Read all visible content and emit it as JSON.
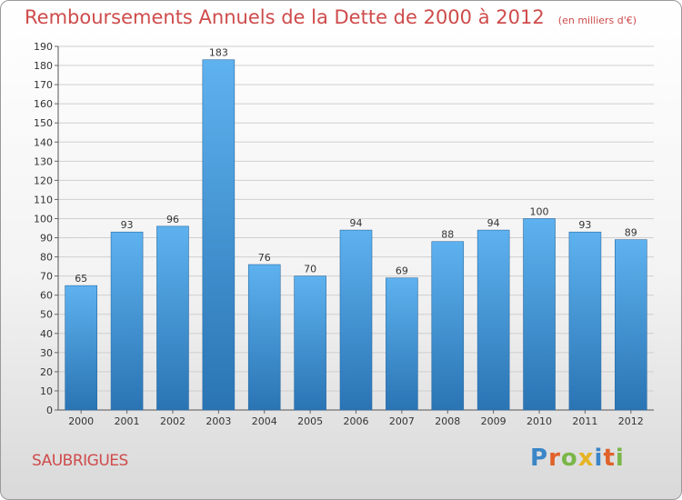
{
  "title": "Remboursements Annuels de la Dette de 2000 à 2012",
  "unit": "(en milliers d'€)",
  "place": "SAUBRIGUES",
  "logo": {
    "text": "Proxiti",
    "letters": [
      "P",
      "r",
      "o",
      "x",
      "i",
      "t",
      "i"
    ],
    "colors": [
      "#3a86c8",
      "#e0612a",
      "#7ab648",
      "#e6b422",
      "#3a86c8",
      "#e0612a",
      "#7ab648"
    ]
  },
  "colors": {
    "bar": "#4a9fe0",
    "bar_dark": "#2b75b5",
    "text_red": "#cf4b4b"
  },
  "chart_data": {
    "type": "bar",
    "title": "Remboursements Annuels de la Dette de 2000 à 2012",
    "subtitle": "(en milliers d'€)",
    "categories": [
      "2000",
      "2001",
      "2002",
      "2003",
      "2004",
      "2005",
      "2006",
      "2007",
      "2008",
      "2009",
      "2010",
      "2011",
      "2012"
    ],
    "values": [
      65,
      93,
      96,
      183,
      76,
      70,
      94,
      69,
      88,
      94,
      100,
      93,
      89
    ],
    "ylim": [
      0,
      190
    ],
    "yticks": [
      0,
      10,
      20,
      30,
      40,
      50,
      60,
      70,
      80,
      90,
      100,
      110,
      120,
      130,
      140,
      150,
      160,
      170,
      180,
      190
    ],
    "grid": true,
    "legend": "none"
  }
}
